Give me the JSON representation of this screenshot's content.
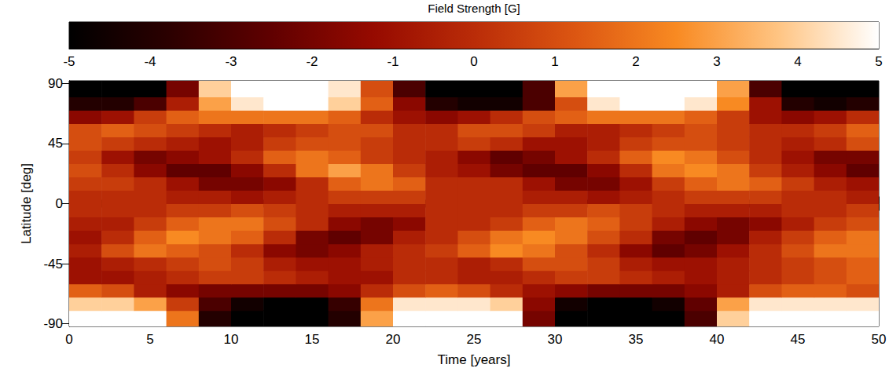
{
  "chart_data": {
    "type": "heatmap",
    "x_label": "Time [years]",
    "y_label": "Latitude [deg]",
    "xlim": [
      0,
      50
    ],
    "xticks": [
      0,
      5,
      10,
      15,
      20,
      25,
      30,
      35,
      40,
      45,
      50
    ],
    "ylim": [
      -92,
      92
    ],
    "yticks": [
      -90,
      -45,
      0,
      45,
      90
    ],
    "time_edges": [
      0,
      2,
      4,
      6,
      8,
      10,
      12,
      14,
      16,
      18,
      20,
      22,
      24,
      26,
      28,
      30,
      32,
      34,
      36,
      38,
      40,
      42,
      44,
      46,
      48,
      50
    ],
    "lat_edges": [
      -92,
      -80,
      -70,
      -60,
      -50,
      -40,
      -30,
      -20,
      -10,
      0,
      10,
      20,
      30,
      40,
      50,
      60,
      70,
      80,
      92
    ],
    "values": [
      [
        5,
        5,
        5,
        2,
        -4,
        -5,
        -5,
        -5,
        -4,
        3,
        5,
        5,
        5,
        5,
        -2,
        -5,
        -5,
        -5,
        -5,
        -3,
        4,
        5,
        5,
        5,
        5
      ],
      [
        4,
        4,
        3,
        0.5,
        -3,
        -4.5,
        -5,
        -5,
        -3.5,
        2,
        4.5,
        4.5,
        4.5,
        4,
        -1.5,
        -4.5,
        -5,
        -5,
        -4.5,
        -2.5,
        3,
        4.5,
        4.5,
        4.5,
        4.5
      ],
      [
        1.5,
        1,
        -0.5,
        -1.5,
        -2,
        -2,
        -2,
        -2,
        -1.5,
        0,
        1,
        1.5,
        1,
        0,
        -1,
        -1.5,
        -2,
        -2,
        -2,
        -1.5,
        -0.5,
        1,
        1.5,
        1.5,
        1
      ],
      [
        -1,
        -1,
        -0.5,
        0,
        0.5,
        0.5,
        0,
        -0.5,
        -1,
        -1,
        0,
        0,
        -0.5,
        -0.5,
        0,
        0.5,
        0.5,
        0,
        -0.5,
        -1,
        -0.5,
        0,
        0.5,
        1,
        1.5
      ],
      [
        -1,
        -0.5,
        0,
        0.5,
        1,
        0.5,
        -0.5,
        -1,
        -1,
        -0.5,
        0,
        0,
        -0.5,
        0,
        1,
        1,
        0.5,
        -0.5,
        -1,
        -1,
        -0.5,
        0,
        0.5,
        1,
        1.5
      ],
      [
        -0.5,
        1,
        2,
        1.5,
        1,
        0,
        -1.5,
        -2,
        -1.5,
        -0.5,
        0,
        0.5,
        1.5,
        2.5,
        2,
        1,
        0,
        -1.5,
        -2.5,
        -2,
        -1,
        0,
        1,
        2,
        2
      ],
      [
        -1,
        0,
        1.5,
        2.5,
        2,
        1.5,
        0,
        -2,
        -2.5,
        -2,
        -0.5,
        0,
        1,
        2,
        2.5,
        2,
        1,
        0,
        -2,
        -2.5,
        -2,
        -0.5,
        0.5,
        1.5,
        2
      ],
      [
        -0.5,
        -0.5,
        0.5,
        1.5,
        2,
        2,
        1,
        0,
        -1.5,
        -2,
        -1.5,
        0,
        0,
        0.5,
        1.5,
        2,
        1.5,
        0.5,
        -0.5,
        -1.5,
        -2,
        -1.5,
        -0.5,
        0.5,
        1
      ],
      [
        0,
        0,
        0,
        0.5,
        0.5,
        1,
        0.5,
        0,
        -0.5,
        -0.5,
        -0.5,
        0,
        0,
        0,
        0.5,
        0.5,
        1,
        0.5,
        0,
        -0.5,
        -0.5,
        -0.5,
        0,
        0,
        0.5
      ],
      [
        0,
        0,
        0,
        -0.5,
        -0.5,
        -1,
        -0.5,
        0,
        0.5,
        0.5,
        0.5,
        0,
        0,
        0,
        -0.5,
        -0.5,
        -1,
        -0.5,
        0,
        0.5,
        0.5,
        0.5,
        0,
        0,
        -0.5
      ],
      [
        0.5,
        0.5,
        0,
        -1,
        -2,
        -2,
        -1.5,
        0,
        1.5,
        2,
        1.5,
        0,
        0,
        0,
        -1,
        -2,
        -2,
        -1,
        0.5,
        1.5,
        2,
        1.5,
        0.5,
        -0.5,
        -1
      ],
      [
        1,
        0,
        -1.5,
        -2.5,
        -2.5,
        -1.5,
        0,
        2,
        3,
        2,
        0.5,
        -0.5,
        -1,
        -2,
        -2.5,
        -2.5,
        -1.5,
        0,
        2,
        2.5,
        2,
        0.5,
        -0.5,
        -1.5,
        -2.5
      ],
      [
        0.5,
        -1,
        -2,
        -1.5,
        -1,
        0,
        1.5,
        2,
        1.5,
        0.5,
        0,
        -0.5,
        -1.5,
        -2.5,
        -2,
        -1,
        0,
        1.5,
        2.5,
        2,
        1,
        0,
        -1,
        -2,
        -2
      ],
      [
        1,
        0.5,
        0,
        -0.5,
        -1,
        -0.5,
        0.5,
        1,
        1,
        0.5,
        0,
        0,
        0.5,
        0,
        -1,
        -1,
        -0.5,
        0.5,
        1,
        1,
        0.5,
        0,
        -0.5,
        0,
        1
      ],
      [
        1,
        1.5,
        1,
        0.5,
        0,
        -0.5,
        0,
        0.5,
        1,
        1,
        0,
        0,
        1,
        1,
        0.5,
        -0.5,
        -0.5,
        0,
        0.5,
        1,
        0.5,
        0,
        0,
        0.5,
        1.5
      ],
      [
        -1.5,
        -1,
        0.5,
        1.5,
        2,
        2,
        2,
        2,
        1.5,
        0,
        -1,
        -1.5,
        -1,
        0,
        1,
        1.5,
        2,
        2,
        2,
        1.5,
        0.5,
        -1,
        -1.5,
        -1,
        0
      ],
      [
        -4,
        -4,
        -3,
        -0.5,
        3,
        4.5,
        5,
        5,
        4,
        1.5,
        -1.5,
        -4,
        -4.5,
        -4.5,
        -3,
        1,
        4.5,
        5,
        5,
        4.5,
        2.5,
        -1,
        -4,
        -4.5,
        -4
      ],
      [
        -5,
        -5,
        -5,
        -2,
        4,
        5,
        5,
        5,
        4.5,
        1,
        -3,
        -5,
        -5,
        -5,
        -3,
        3,
        5,
        5,
        5,
        5,
        3,
        -3,
        -5,
        -5,
        -5
      ]
    ],
    "colorbar": {
      "label": "Field Strength [G]",
      "range": [
        -5,
        5
      ],
      "ticks": [
        -5,
        -4,
        -3,
        -2,
        -1,
        0,
        1,
        2,
        3,
        4,
        5
      ]
    }
  }
}
